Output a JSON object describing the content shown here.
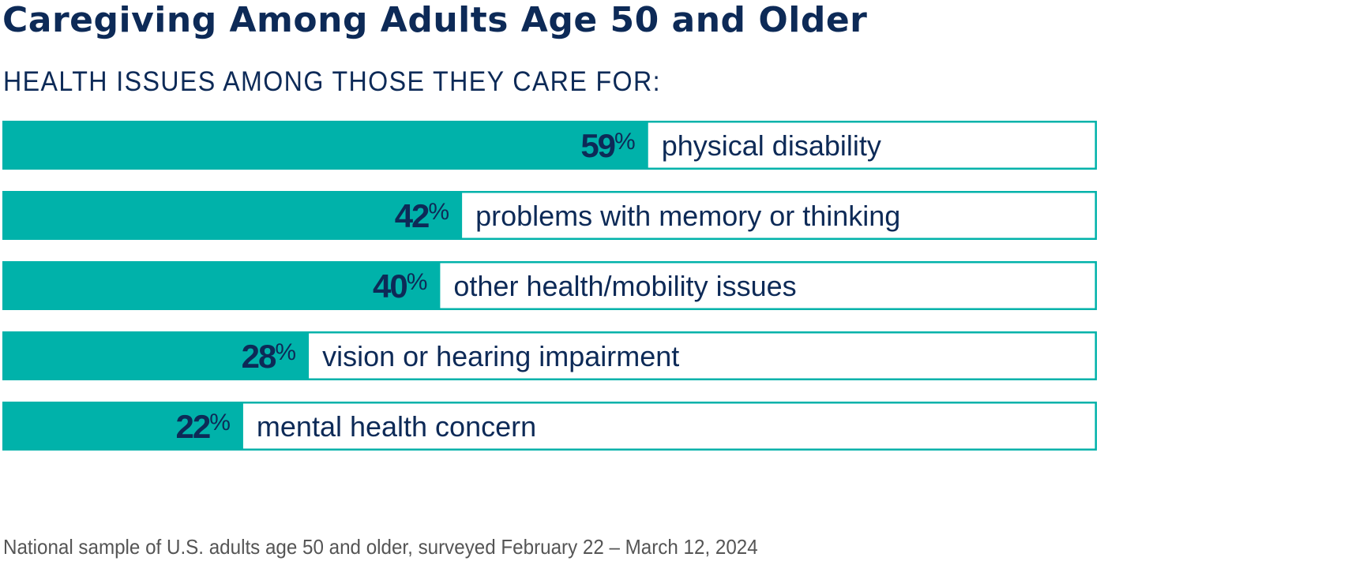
{
  "title": "Caregiving Among Adults Age 50 and Older",
  "subtitle": "HEALTH ISSUES AMONG THOSE THEY CARE FOR:",
  "footnote": "National sample of U.S. adults age 50 and older, surveyed February 22 – March 12, 2024",
  "colors": {
    "bar_fill": "#00b2aa",
    "bar_outline": "#00b2aa",
    "text_dark": "#0d2a57",
    "footnote": "#555555"
  },
  "chart_data": {
    "type": "bar",
    "orientation": "horizontal",
    "categories": [
      "physical disability",
      "problems with memory or thinking",
      "other health/mobility issues",
      "vision or hearing impairment",
      "mental health concern"
    ],
    "values": [
      59,
      42,
      40,
      28,
      22
    ],
    "value_labels": [
      "59%",
      "42%",
      "40%",
      "28%",
      "22%"
    ],
    "xlim": [
      0,
      100
    ],
    "unit": "%",
    "grid": false,
    "legend": "none"
  }
}
